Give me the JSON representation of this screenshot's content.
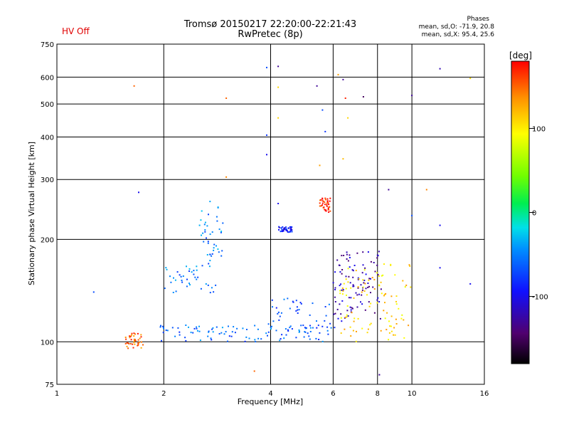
{
  "header": {
    "hv_status": "HV Off",
    "title_line1": "Tromsø 20150217 22:20:00-22:21:43",
    "title_line2": "RwPretec (8p)",
    "phases_title": "Phases",
    "stat_o": "mean, sd,O: -71.9, 20.8",
    "stat_x": "mean, sd,X:  95.4, 25.6"
  },
  "colorbar": {
    "unit_label": "[deg]",
    "ticks": [
      {
        "value": 100,
        "label": "100"
      },
      {
        "value": 0,
        "label": "0"
      },
      {
        "value": -100,
        "label": "-100"
      }
    ],
    "range": [
      -180,
      180
    ]
  },
  "chart_data": {
    "type": "scatter",
    "xlabel": "Frequency [MHz]",
    "ylabel": "Stationary phase Virtual Height [km]",
    "xscale": "log",
    "yscale": "log",
    "xlim": [
      1,
      16
    ],
    "ylim": [
      75,
      750
    ],
    "xticks": [
      1,
      2,
      4,
      6,
      8,
      10,
      16
    ],
    "xtick_labels": [
      "1",
      "2",
      "4",
      "6",
      "8",
      "10",
      "16"
    ],
    "yticks": [
      75,
      100,
      200,
      300,
      400,
      500,
      600,
      750
    ],
    "ytick_labels": [
      "75",
      "100",
      "200",
      "300",
      "400",
      "500",
      "600",
      "750"
    ],
    "grid": true,
    "color_scale": "phase (deg), -180 black/purple → blue → cyan → green → yellow → red 180",
    "clusters": [
      {
        "name": "low-frequency E/Es echo",
        "f": [
          1.55,
          1.75
        ],
        "h": [
          95,
          106
        ],
        "phase": 150
      },
      {
        "name": "ground trace",
        "f": [
          1.9,
          6.0
        ],
        "h": [
          100,
          112
        ],
        "phase": -60
      },
      {
        "name": "rising trace",
        "f": [
          3.9,
          6.2
        ],
        "h": [
          105,
          135
        ],
        "phase": -70
      },
      {
        "name": "F-region cusp low",
        "f": [
          2.0,
          2.8
        ],
        "h": [
          138,
          170
        ],
        "phase": -55
      },
      {
        "name": "F-region cusp high",
        "f": [
          2.5,
          2.95
        ],
        "h": [
          170,
          260
        ],
        "phase": -50
      },
      {
        "name": "purple cluster",
        "f": [
          6.0,
          8.2
        ],
        "h": [
          115,
          185
        ],
        "phase": -120
      },
      {
        "name": "yellow cluster",
        "f": [
          6.2,
          10.0
        ],
        "h": [
          100,
          170
        ],
        "phase": 110
      },
      {
        "name": "blue streak",
        "f": [
          4.2,
          4.6
        ],
        "h": [
          210,
          218
        ],
        "phase": -95
      },
      {
        "name": "red streak",
        "f": [
          5.5,
          5.9
        ],
        "h": [
          240,
          265
        ],
        "phase": 170
      }
    ],
    "isolated_points": [
      {
        "f": 1.27,
        "h": 140,
        "phase": -70
      },
      {
        "f": 1.65,
        "h": 565,
        "phase": 150
      },
      {
        "f": 1.7,
        "h": 275,
        "phase": -100
      },
      {
        "f": 3.0,
        "h": 520,
        "phase": 150
      },
      {
        "f": 3.0,
        "h": 305,
        "phase": 140
      },
      {
        "f": 3.9,
        "h": 640,
        "phase": -70
      },
      {
        "f": 3.9,
        "h": 405,
        "phase": -80
      },
      {
        "f": 3.9,
        "h": 355,
        "phase": -100
      },
      {
        "f": 4.2,
        "h": 645,
        "phase": -130
      },
      {
        "f": 4.2,
        "h": 560,
        "phase": 110
      },
      {
        "f": 4.2,
        "h": 455,
        "phase": 110
      },
      {
        "f": 4.2,
        "h": 255,
        "phase": -100
      },
      {
        "f": 5.4,
        "h": 565,
        "phase": -130
      },
      {
        "f": 5.5,
        "h": 330,
        "phase": 130
      },
      {
        "f": 5.6,
        "h": 480,
        "phase": -70
      },
      {
        "f": 5.7,
        "h": 415,
        "phase": -80
      },
      {
        "f": 6.2,
        "h": 610,
        "phase": 130
      },
      {
        "f": 6.4,
        "h": 590,
        "phase": -130
      },
      {
        "f": 6.5,
        "h": 520,
        "phase": 170
      },
      {
        "f": 6.6,
        "h": 455,
        "phase": 110
      },
      {
        "f": 6.4,
        "h": 345,
        "phase": 120
      },
      {
        "f": 7.3,
        "h": 525,
        "phase": -150
      },
      {
        "f": 8.6,
        "h": 280,
        "phase": -130
      },
      {
        "f": 10.0,
        "h": 530,
        "phase": -130
      },
      {
        "f": 10.0,
        "h": 235,
        "phase": -70
      },
      {
        "f": 11.0,
        "h": 280,
        "phase": 140
      },
      {
        "f": 12.0,
        "h": 635,
        "phase": -120
      },
      {
        "f": 12.0,
        "h": 220,
        "phase": -100
      },
      {
        "f": 12.0,
        "h": 165,
        "phase": -100
      },
      {
        "f": 14.6,
        "h": 595,
        "phase": 110
      },
      {
        "f": 14.6,
        "h": 148,
        "phase": -100
      },
      {
        "f": 3.6,
        "h": 82,
        "phase": 150
      },
      {
        "f": 8.1,
        "h": 80,
        "phase": -130
      }
    ]
  }
}
